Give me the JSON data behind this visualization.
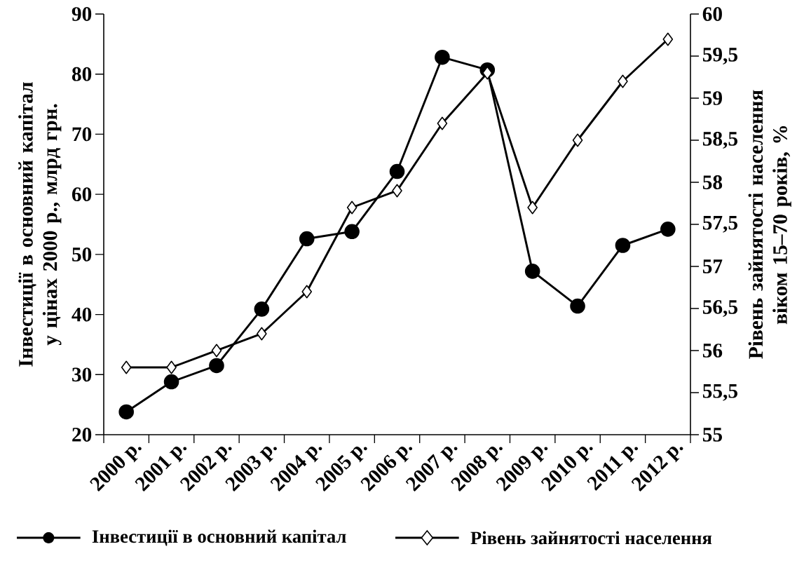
{
  "chart_data": {
    "type": "line",
    "categories": [
      "2000 р.",
      "2001 р.",
      "2002 р.",
      "2003 р.",
      "2004 р.",
      "2005 р.",
      "2006 р.",
      "2007 р.",
      "2008 р.",
      "2009 р.",
      "2010 р.",
      "2011 р.",
      "2012 р."
    ],
    "series": [
      {
        "name": "Інвестиції в основний капітал",
        "color": "#000000",
        "marker": "circle",
        "values": [
          23.8,
          28.8,
          31.5,
          40.9,
          52.6,
          53.8,
          63.8,
          82.8,
          80.7,
          47.2,
          41.4,
          51.5,
          54.2
        ]
      },
      {
        "name": "Рівень зайнятості населення",
        "color": "#000000",
        "marker": "diamond",
        "axis": "y2",
        "values": [
          55.8,
          55.8,
          56.0,
          56.2,
          56.7,
          57.7,
          57.9,
          58.7,
          59.3,
          57.7,
          58.5,
          59.2,
          59.7
        ]
      }
    ],
    "ylabel": "Інвестиції в основний капітал у цінах 2000 р., млрд грн.",
    "y2label": "Рівень зайнятості населення віком 15–70 років, %",
    "ylim": [
      20,
      90
    ],
    "yticks": [
      20,
      30,
      40,
      50,
      60,
      70,
      80,
      90
    ],
    "y2lim": [
      55,
      60
    ],
    "y2ticks": [
      55,
      {
        "value": 55.5,
        "label": "55,5"
      },
      56,
      {
        "value": 56.5,
        "label": "56,5"
      },
      57,
      {
        "value": 57.5,
        "label": "57,5"
      },
      58,
      {
        "value": 58.5,
        "label": "58,5"
      },
      59,
      {
        "value": 59.5,
        "label": "59,5"
      },
      60
    ],
    "legend": "bottom",
    "line_style": "solid"
  }
}
